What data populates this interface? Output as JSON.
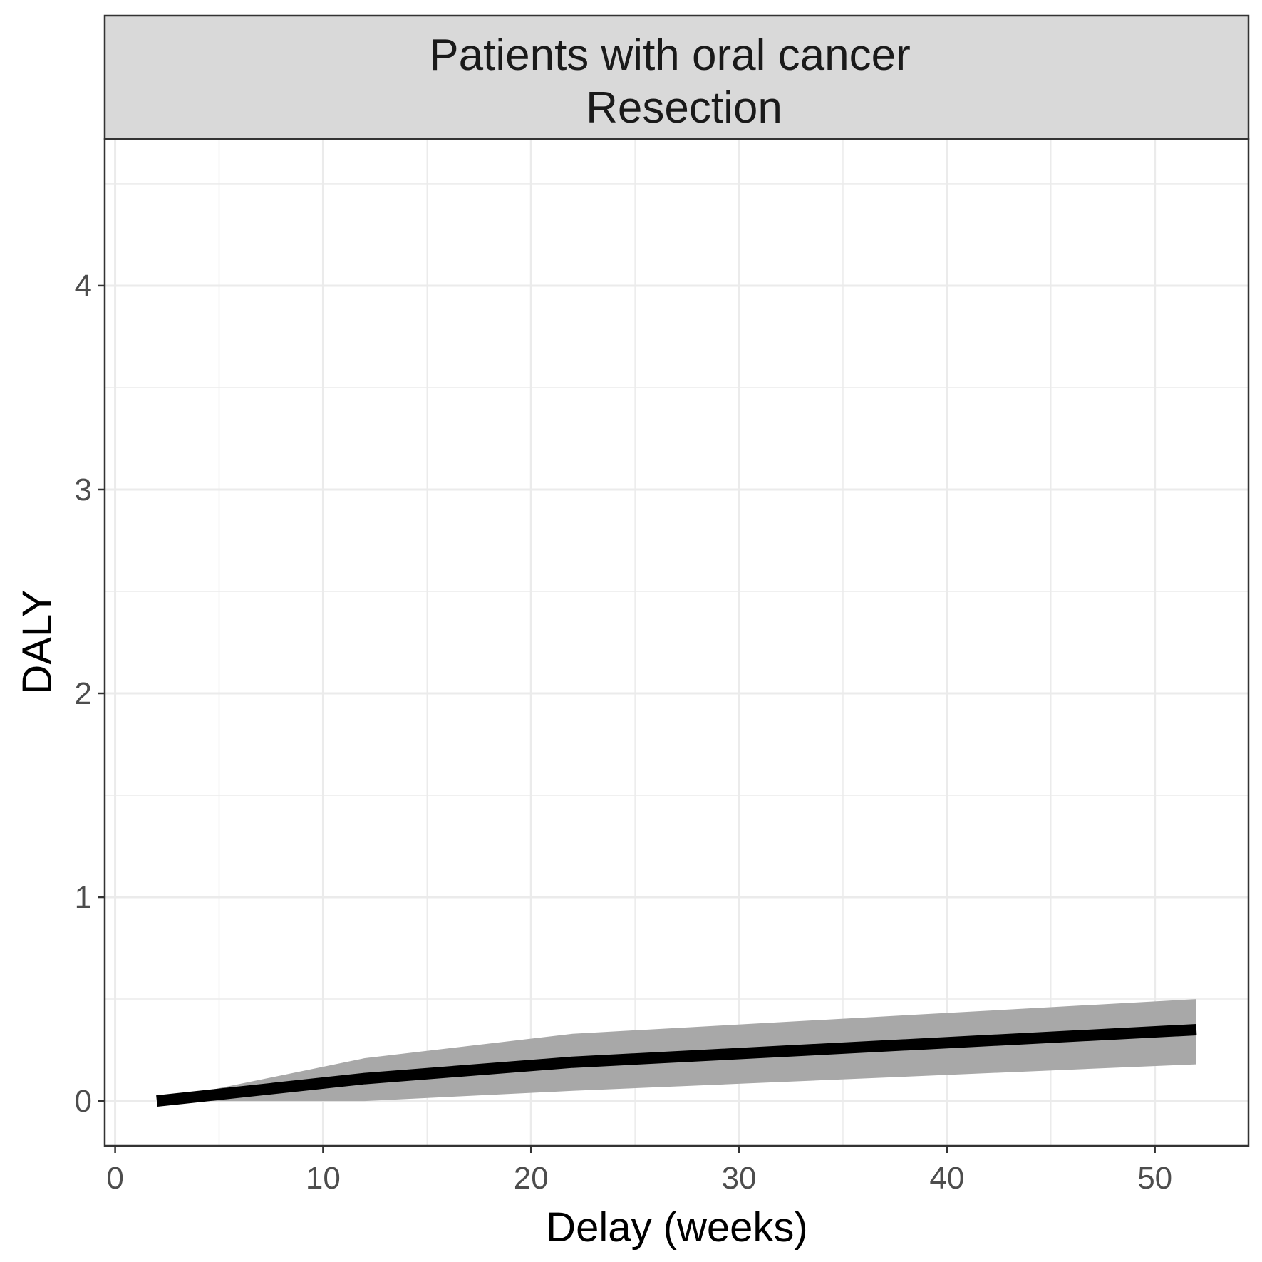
{
  "chart_data": {
    "type": "line",
    "panel_title_lines": [
      "Patients with oral cancer",
      "Resection"
    ],
    "xlabel": "Delay (weeks)",
    "ylabel": "DALY",
    "xlim": [
      -0.5,
      54.5
    ],
    "ylim": [
      -0.22,
      4.72
    ],
    "x_ticks": [
      0,
      10,
      20,
      30,
      40,
      50
    ],
    "y_ticks": [
      0,
      1,
      2,
      3,
      4
    ],
    "x_minor": [
      5,
      15,
      25,
      35,
      45
    ],
    "y_minor": [
      0.5,
      1.5,
      2.5,
      3.5,
      4.5
    ],
    "grid": true,
    "series": [
      {
        "x": [
          2,
          12,
          22,
          52
        ],
        "values": [
          0.0,
          0.11,
          0.19,
          0.35
        ],
        "lower": [
          0.0,
          0.0,
          0.05,
          0.18
        ],
        "upper": [
          0.0,
          0.21,
          0.33,
          0.5
        ],
        "line_color": "#000000",
        "band_color": "#a8a8a8"
      }
    ]
  }
}
